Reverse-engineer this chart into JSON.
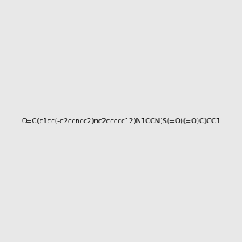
{
  "smiles": "O=C(c1cc(-c2ccncc2)nc2ccccc12)N1CCN(S(=O)(=O)C)CC1",
  "title": "",
  "bg_color": "#e8e8e8",
  "figsize": [
    3.0,
    3.0
  ],
  "dpi": 100
}
